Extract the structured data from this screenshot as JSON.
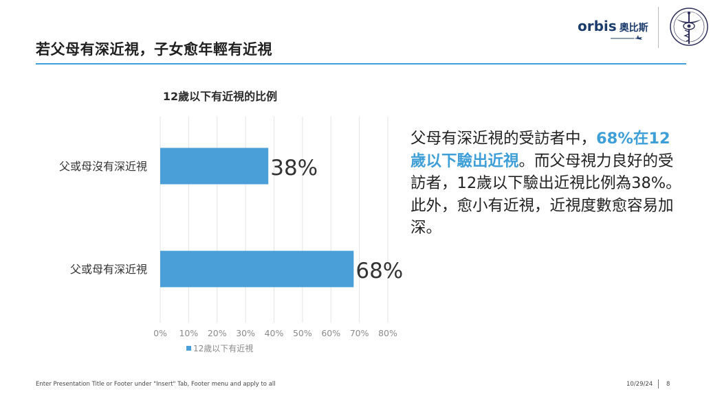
{
  "slide": {
    "title": "若父母有深近視，子女愈年輕有近視",
    "brand": {
      "latin": "orbis",
      "cjk": "奧比斯"
    }
  },
  "side_text": {
    "part1": "父母有深近視的受訪者中，",
    "highlight": "68%在12歲以下驗出近視",
    "part2": "。而父母視力良好的受訪者，12歲以下驗出近視比例為38%。此外，愈小有近視，近視度數愈容易加深。"
  },
  "footer": {
    "left": "Enter Presentation Title or Footer under \"Insert\" Tab, Footer menu and apply to all",
    "date": "10/29/24",
    "page": "8"
  },
  "colors": {
    "accent": "#3e9fd8",
    "bar": "#4a9fd8",
    "brand": "#1d3c6e"
  },
  "icons": {
    "brand_plane": "airplane-icon",
    "seal": "caduceus-seal-icon"
  },
  "chart_data": {
    "type": "bar",
    "orientation": "horizontal",
    "title": "12歲以下有近視的比例",
    "categories": [
      "父或母沒有深近視",
      "父或母有深近視"
    ],
    "series": [
      {
        "name": "12歲以下有近視",
        "values": [
          38,
          68
        ]
      }
    ],
    "data_labels": [
      "38%",
      "68%"
    ],
    "xlim": [
      0,
      80
    ],
    "xticks": [
      "0%",
      "10%",
      "20%",
      "30%",
      "40%",
      "50%",
      "60%",
      "70%",
      "80%"
    ],
    "grid": true,
    "legend": "bottom"
  }
}
